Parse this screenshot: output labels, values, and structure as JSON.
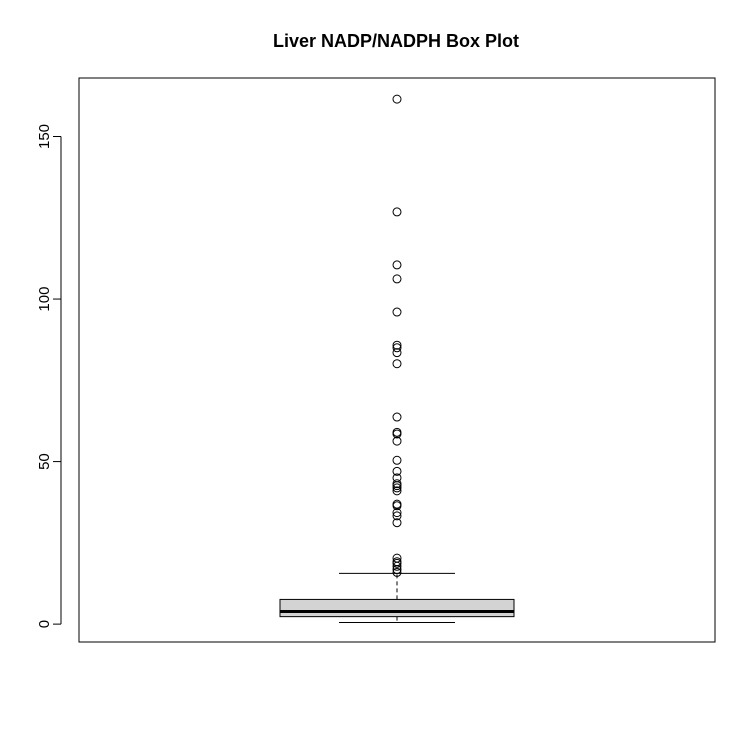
{
  "chart_data": {
    "type": "box",
    "title": "Liver NADP/NADPH Box Plot",
    "xlabel": "",
    "ylabel": "",
    "ylim": [
      -5.5,
      168
    ],
    "yticks": [
      0,
      50,
      100,
      150
    ],
    "yticklabels": [
      "0",
      "50",
      "100",
      "150"
    ],
    "box": {
      "lower_whisker": 0.5,
      "q1": 2.3,
      "median": 3.9,
      "q3": 7.6,
      "upper_whisker": 15.6,
      "fill": "#d3d3d3"
    },
    "outliers": [
      161.5,
      126.8,
      110.5,
      106.2,
      96.0,
      85.8,
      85.0,
      83.5,
      80.1,
      63.7,
      59.0,
      58.5,
      56.3,
      50.4,
      47.0,
      45.0,
      43.2,
      42.6,
      41.9,
      41.0,
      36.9,
      36.4,
      34.3,
      33.3,
      31.2,
      20.3,
      19.2,
      18.7,
      17.8,
      16.8,
      15.9
    ]
  }
}
